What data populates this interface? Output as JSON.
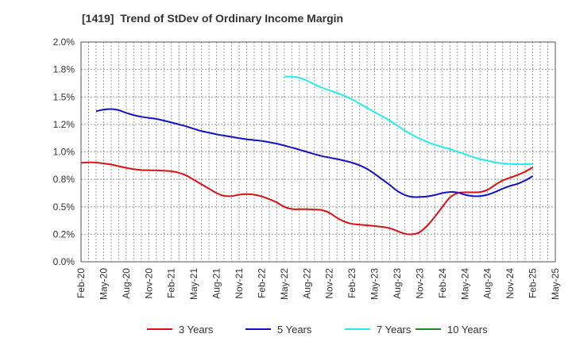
{
  "chart_data": {
    "type": "line",
    "title": "[1419]  Trend of StDev of Ordinary Income Margin",
    "xlabel": "",
    "ylabel": "",
    "ylim": [
      0,
      2.0
    ],
    "y_ticks": [
      "0.0%",
      "0.2%",
      "0.5%",
      "0.8%",
      "1.0%",
      "1.2%",
      "1.5%",
      "1.8%",
      "2.0%"
    ],
    "x_ticks": [
      "Feb-20",
      "May-20",
      "Aug-20",
      "Nov-20",
      "Feb-21",
      "May-21",
      "Aug-21",
      "Nov-21",
      "Feb-22",
      "May-22",
      "Aug-22",
      "Nov-22",
      "Feb-23",
      "May-23",
      "Aug-23",
      "Nov-23",
      "Feb-24",
      "May-24",
      "Aug-24",
      "Nov-24",
      "Feb-25",
      "May-25"
    ],
    "grid": true,
    "legend_position": "bottom",
    "series": [
      {
        "name": "3 Years",
        "color": "#dd1111",
        "points": [
          [
            "Feb-20",
            0.9
          ],
          [
            "Mar-20",
            0.905
          ],
          [
            "Apr-20",
            0.903
          ],
          [
            "May-20",
            0.895
          ],
          [
            "Jun-20",
            0.885
          ],
          [
            "Jul-20",
            0.87
          ],
          [
            "Aug-20",
            0.855
          ],
          [
            "Sep-20",
            0.843
          ],
          [
            "Oct-20",
            0.835
          ],
          [
            "Nov-20",
            0.833
          ],
          [
            "Dec-20",
            0.832
          ],
          [
            "Jan-21",
            0.828
          ],
          [
            "Feb-21",
            0.823
          ],
          [
            "Mar-21",
            0.81
          ],
          [
            "Apr-21",
            0.785
          ],
          [
            "May-21",
            0.745
          ],
          [
            "Jun-21",
            0.705
          ],
          [
            "Jul-21",
            0.665
          ],
          [
            "Aug-21",
            0.625
          ],
          [
            "Sep-21",
            0.6
          ],
          [
            "Oct-21",
            0.598
          ],
          [
            "Nov-21",
            0.61
          ],
          [
            "Dec-21",
            0.615
          ],
          [
            "Jan-22",
            0.61
          ],
          [
            "Feb-22",
            0.595
          ],
          [
            "Mar-22",
            0.57
          ],
          [
            "Apr-22",
            0.54
          ],
          [
            "May-22",
            0.5
          ],
          [
            "Jun-22",
            0.48
          ],
          [
            "Jul-22",
            0.478
          ],
          [
            "Aug-22",
            0.478
          ],
          [
            "Sep-22",
            0.475
          ],
          [
            "Oct-22",
            0.47
          ],
          [
            "Nov-22",
            0.445
          ],
          [
            "Dec-22",
            0.4
          ],
          [
            "Jan-23",
            0.365
          ],
          [
            "Feb-23",
            0.345
          ],
          [
            "Mar-23",
            0.338
          ],
          [
            "Apr-23",
            0.332
          ],
          [
            "May-23",
            0.325
          ],
          [
            "Jun-23",
            0.318
          ],
          [
            "Jul-23",
            0.305
          ],
          [
            "Aug-23",
            0.28
          ],
          [
            "Sep-23",
            0.255
          ],
          [
            "Oct-23",
            0.25
          ],
          [
            "Nov-23",
            0.27
          ],
          [
            "Dec-23",
            0.33
          ],
          [
            "Jan-24",
            0.41
          ],
          [
            "Feb-24",
            0.5
          ],
          [
            "Mar-24",
            0.585
          ],
          [
            "Apr-24",
            0.625
          ],
          [
            "May-24",
            0.632
          ],
          [
            "Jun-24",
            0.632
          ],
          [
            "Jul-24",
            0.635
          ],
          [
            "Aug-24",
            0.655
          ],
          [
            "Sep-24",
            0.7
          ],
          [
            "Oct-24",
            0.74
          ],
          [
            "Nov-24",
            0.765
          ],
          [
            "Dec-24",
            0.79
          ],
          [
            "Jan-25",
            0.82
          ],
          [
            "Feb-25",
            0.86
          ]
        ]
      },
      {
        "name": "5 Years",
        "color": "#1111cc",
        "points": [
          [
            "Apr-20",
            1.37
          ],
          [
            "May-20",
            1.385
          ],
          [
            "Jun-20",
            1.39
          ],
          [
            "Jul-20",
            1.38
          ],
          [
            "Aug-20",
            1.355
          ],
          [
            "Sep-20",
            1.335
          ],
          [
            "Oct-20",
            1.32
          ],
          [
            "Nov-20",
            1.31
          ],
          [
            "Dec-20",
            1.3
          ],
          [
            "Jan-21",
            1.285
          ],
          [
            "Feb-21",
            1.268
          ],
          [
            "Mar-21",
            1.25
          ],
          [
            "Apr-21",
            1.232
          ],
          [
            "May-21",
            1.21
          ],
          [
            "Jun-21",
            1.19
          ],
          [
            "Jul-21",
            1.175
          ],
          [
            "Aug-21",
            1.16
          ],
          [
            "Sep-21",
            1.148
          ],
          [
            "Oct-21",
            1.137
          ],
          [
            "Nov-21",
            1.125
          ],
          [
            "Dec-21",
            1.115
          ],
          [
            "Jan-22",
            1.107
          ],
          [
            "Feb-22",
            1.1
          ],
          [
            "Mar-22",
            1.088
          ],
          [
            "Apr-22",
            1.075
          ],
          [
            "May-22",
            1.058
          ],
          [
            "Jun-22",
            1.04
          ],
          [
            "Jul-22",
            1.02
          ],
          [
            "Aug-22",
            1.0
          ],
          [
            "Sep-22",
            0.98
          ],
          [
            "Oct-22",
            0.962
          ],
          [
            "Nov-22",
            0.948
          ],
          [
            "Dec-22",
            0.935
          ],
          [
            "Jan-23",
            0.92
          ],
          [
            "Feb-23",
            0.902
          ],
          [
            "Mar-23",
            0.878
          ],
          [
            "Apr-23",
            0.845
          ],
          [
            "May-23",
            0.8
          ],
          [
            "Jun-23",
            0.75
          ],
          [
            "Jul-23",
            0.7
          ],
          [
            "Aug-23",
            0.645
          ],
          [
            "Sep-23",
            0.608
          ],
          [
            "Oct-23",
            0.59
          ],
          [
            "Nov-23",
            0.59
          ],
          [
            "Dec-23",
            0.595
          ],
          [
            "Jan-24",
            0.607
          ],
          [
            "Feb-24",
            0.625
          ],
          [
            "Mar-24",
            0.635
          ],
          [
            "Apr-24",
            0.63
          ],
          [
            "May-24",
            0.61
          ],
          [
            "Jun-24",
            0.598
          ],
          [
            "Jul-24",
            0.598
          ],
          [
            "Aug-24",
            0.61
          ],
          [
            "Sep-24",
            0.635
          ],
          [
            "Oct-24",
            0.665
          ],
          [
            "Nov-24",
            0.69
          ],
          [
            "Dec-24",
            0.71
          ],
          [
            "Jan-25",
            0.74
          ],
          [
            "Feb-25",
            0.78
          ]
        ]
      },
      {
        "name": "7 Years",
        "color": "#22eeee",
        "points": [
          [
            "May-22",
            1.685
          ],
          [
            "Jun-22",
            1.685
          ],
          [
            "Jul-22",
            1.675
          ],
          [
            "Aug-22",
            1.65
          ],
          [
            "Sep-22",
            1.615
          ],
          [
            "Oct-22",
            1.585
          ],
          [
            "Nov-22",
            1.56
          ],
          [
            "Dec-22",
            1.537
          ],
          [
            "Jan-23",
            1.51
          ],
          [
            "Feb-23",
            1.478
          ],
          [
            "Mar-23",
            1.44
          ],
          [
            "Apr-23",
            1.4
          ],
          [
            "May-23",
            1.362
          ],
          [
            "Jun-23",
            1.325
          ],
          [
            "Jul-23",
            1.285
          ],
          [
            "Aug-23",
            1.24
          ],
          [
            "Sep-23",
            1.195
          ],
          [
            "Oct-23",
            1.155
          ],
          [
            "Nov-23",
            1.12
          ],
          [
            "Dec-23",
            1.09
          ],
          [
            "Jan-24",
            1.065
          ],
          [
            "Feb-24",
            1.045
          ],
          [
            "Mar-24",
            1.025
          ],
          [
            "Apr-24",
            1.0
          ],
          [
            "May-24",
            0.98
          ],
          [
            "Jun-24",
            0.955
          ],
          [
            "Jul-24",
            0.935
          ],
          [
            "Aug-24",
            0.92
          ],
          [
            "Sep-24",
            0.905
          ],
          [
            "Oct-24",
            0.895
          ],
          [
            "Nov-24",
            0.89
          ],
          [
            "Dec-24",
            0.888
          ],
          [
            "Jan-25",
            0.888
          ],
          [
            "Feb-25",
            0.89
          ]
        ]
      },
      {
        "name": "10 Years",
        "color": "#228822",
        "points": []
      }
    ]
  }
}
